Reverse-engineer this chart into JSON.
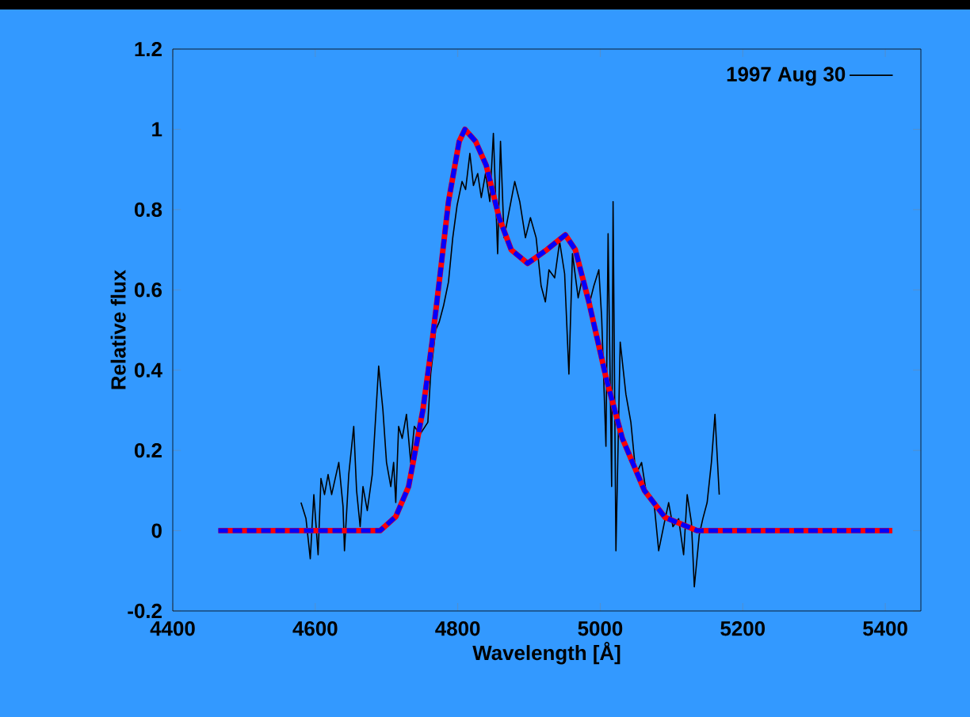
{
  "chart_data": {
    "type": "line",
    "xlabel": "Wavelength [Å]",
    "ylabel": "Relative flux",
    "xlim": [
      4400,
      5450
    ],
    "ylim": [
      -0.2,
      1.2
    ],
    "xticks": [
      4400,
      4600,
      4800,
      5000,
      5200,
      5400
    ],
    "yticks": [
      -0.2,
      0,
      0.2,
      0.4,
      0.6,
      0.8,
      1,
      1.2
    ],
    "legend": "top right",
    "grid": false,
    "marker": "none",
    "series": [
      {
        "name": "1997 Aug 30",
        "color": "#000000",
        "line_style": "solid",
        "x": [
          4580,
          4587,
          4593,
          4598,
          4604,
          4608,
          4613,
          4618,
          4623,
          4628,
          4633,
          4639,
          4641,
          4647,
          4654,
          4658,
          4663,
          4667,
          4673,
          4680,
          4689,
          4695,
          4700,
          4706,
          4710,
          4713,
          4717,
          4722,
          4728,
          4734,
          4739,
          4747,
          4758,
          4762,
          4769,
          4774,
          4780,
          4787,
          4793,
          4799,
          4806,
          4811,
          4817,
          4822,
          4828,
          4833,
          4839,
          4845,
          4850,
          4856,
          4860,
          4865,
          4880,
          4887,
          4895,
          4902,
          4910,
          4917,
          4923,
          4928,
          4936,
          4943,
          4950,
          4956,
          4961,
          4969,
          4976,
          4984,
          4991,
          4998,
          5002,
          5008,
          5011,
          5016,
          5018,
          5022,
          5028,
          5036,
          5043,
          5050,
          5058,
          5065,
          5076,
          5082,
          5090,
          5096,
          5102,
          5110,
          5117,
          5122,
          5128,
          5132,
          5139,
          5144,
          5150,
          5156,
          5161,
          5167
        ],
        "values": [
          0.07,
          0.03,
          -0.07,
          0.09,
          -0.06,
          0.13,
          0.09,
          0.14,
          0.09,
          0.13,
          0.17,
          0.06,
          -0.05,
          0.14,
          0.26,
          0.1,
          0.01,
          0.11,
          0.05,
          0.14,
          0.41,
          0.3,
          0.17,
          0.11,
          0.17,
          0.07,
          0.26,
          0.23,
          0.29,
          0.17,
          0.26,
          0.24,
          0.27,
          0.39,
          0.5,
          0.52,
          0.56,
          0.62,
          0.73,
          0.81,
          0.87,
          0.85,
          0.94,
          0.86,
          0.89,
          0.83,
          0.89,
          0.82,
          0.99,
          0.69,
          0.97,
          0.73,
          0.87,
          0.82,
          0.73,
          0.78,
          0.73,
          0.61,
          0.57,
          0.65,
          0.63,
          0.72,
          0.64,
          0.39,
          0.69,
          0.58,
          0.64,
          0.56,
          0.61,
          0.65,
          0.53,
          0.21,
          0.74,
          0.11,
          0.82,
          -0.05,
          0.47,
          0.34,
          0.27,
          0.14,
          0.17,
          0.09,
          0.06,
          -0.05,
          0.02,
          0.07,
          0.01,
          0.03,
          -0.06,
          0.09,
          0.02,
          -0.14,
          -0.01,
          0.03,
          0.07,
          0.17,
          0.29,
          0.09
        ]
      },
      {
        "color": "#ff0000",
        "line_style": "solid",
        "x": [
          4464,
          4600,
          4691,
          4713,
          4731,
          4751,
          4764,
          4776,
          4787,
          4802,
          4810,
          4825,
          4840,
          4858,
          4875,
          4898,
          4925,
          4951,
          4965,
          4984,
          5009,
          5031,
          5062,
          5091,
          5136,
          5200,
          5300,
          5410
        ],
        "values": [
          0,
          0,
          0,
          0.035,
          0.11,
          0.3,
          0.47,
          0.65,
          0.82,
          0.97,
          1.0,
          0.97,
          0.91,
          0.78,
          0.7,
          0.666,
          0.7,
          0.737,
          0.7,
          0.57,
          0.375,
          0.23,
          0.1,
          0.033,
          0,
          0,
          0,
          0
        ]
      },
      {
        "color": "#0000ff",
        "line_style": "dashed",
        "x": [
          4464,
          4600,
          4691,
          4713,
          4731,
          4751,
          4764,
          4776,
          4787,
          4802,
          4810,
          4825,
          4840,
          4858,
          4875,
          4898,
          4925,
          4951,
          4965,
          4984,
          5009,
          5031,
          5062,
          5091,
          5136,
          5200,
          5300,
          5410
        ],
        "values": [
          0,
          0,
          0,
          0.035,
          0.11,
          0.3,
          0.47,
          0.65,
          0.82,
          0.97,
          1.0,
          0.97,
          0.91,
          0.78,
          0.7,
          0.666,
          0.7,
          0.737,
          0.7,
          0.57,
          0.375,
          0.23,
          0.1,
          0.033,
          0,
          0,
          0,
          0
        ]
      }
    ]
  }
}
